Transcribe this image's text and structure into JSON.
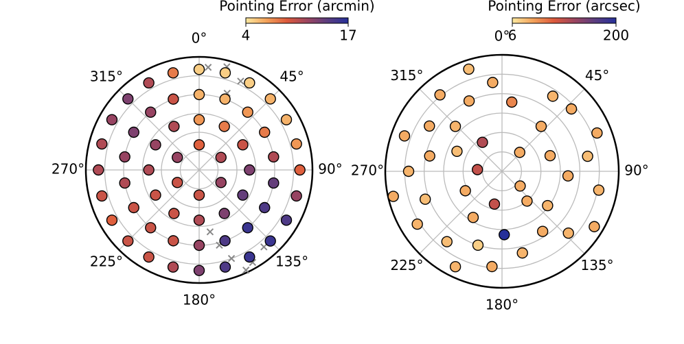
{
  "chart_data": [
    {
      "type": "polar-scatter",
      "colorbar": {
        "label": "Pointing Error (arcmin)",
        "lim": [
          4,
          17
        ],
        "ticks": [
          4,
          17
        ]
      },
      "cmap": [
        "#fde9a0",
        "#f3a25a",
        "#dd5a3c",
        "#9c4560",
        "#5a3d80",
        "#26309a"
      ],
      "rlim": [
        0,
        90
      ],
      "rticks": [
        15,
        30,
        45,
        60,
        75
      ],
      "thetaticks": [
        {
          "value": 0,
          "label": "0°"
        },
        {
          "value": 45,
          "label": "45°"
        },
        {
          "value": 90,
          "label": "90°"
        },
        {
          "value": 135,
          "label": "135°"
        },
        {
          "value": 180,
          "label": "180°"
        },
        {
          "value": 225,
          "label": "225°"
        },
        {
          "value": 270,
          "label": "270°"
        },
        {
          "value": 315,
          "label": "315°"
        }
      ],
      "points": {
        "theta": [
          0,
          60,
          120,
          180,
          240,
          300,
          0,
          30,
          60,
          90,
          120,
          150,
          180,
          210,
          240,
          270,
          300,
          330,
          0,
          20,
          40,
          60,
          80,
          100,
          120,
          140,
          160,
          180,
          200,
          220,
          240,
          260,
          280,
          300,
          320,
          340,
          0,
          15,
          30,
          45,
          60,
          75,
          90,
          105,
          120,
          135,
          150,
          165,
          180,
          195,
          210,
          225,
          240,
          255,
          270,
          285,
          300,
          315,
          330,
          345
        ],
        "r": [
          20,
          20,
          20,
          20,
          20,
          20,
          40,
          40,
          40,
          40,
          40,
          40,
          40,
          40,
          40,
          40,
          40,
          40,
          60,
          60,
          60,
          60,
          60,
          60,
          60,
          60,
          60,
          60,
          60,
          60,
          60,
          60,
          60,
          60,
          60,
          60,
          80,
          80,
          80,
          80,
          80,
          80,
          80,
          80,
          80,
          80,
          80,
          80,
          80,
          80,
          80,
          80,
          80,
          80,
          80,
          80,
          80,
          80,
          80,
          80
        ],
        "values": [
          9,
          11,
          12,
          10,
          10,
          12,
          7,
          8,
          10,
          13,
          14,
          13,
          11,
          10,
          10,
          11,
          12,
          11,
          6,
          6,
          7,
          8,
          11,
          14,
          15,
          16,
          15,
          12,
          10,
          10,
          10,
          11,
          12,
          13,
          12,
          10,
          5,
          5,
          5,
          6,
          6,
          7,
          9,
          12,
          15,
          16,
          16,
          15,
          13,
          11,
          10,
          10,
          9,
          10,
          11,
          11,
          12,
          13,
          11,
          8
        ]
      },
      "excluded": {
        "theta": [
          5,
          15,
          25,
          20,
          140,
          150,
          160,
          165,
          170,
          155
        ],
        "r": [
          82,
          85,
          78,
          65,
          80,
          85,
          75,
          62,
          50,
          88
        ]
      }
    },
    {
      "type": "polar-scatter",
      "colorbar": {
        "label": "Pointing Error (arcsec)",
        "lim": [
          6,
          200
        ],
        "ticks": [
          6,
          200
        ]
      },
      "cmap": [
        "#fde9a0",
        "#f3a25a",
        "#dd5a3c",
        "#9c4560",
        "#5a3d80",
        "#26309a"
      ],
      "rlim": [
        0,
        90
      ],
      "rticks": [
        15,
        30,
        45,
        60,
        75
      ],
      "thetaticks": [
        {
          "value": 0,
          "label": "0°"
        },
        {
          "value": 45,
          "label": "45°"
        },
        {
          "value": 90,
          "label": "90°"
        },
        {
          "value": 135,
          "label": "135°"
        },
        {
          "value": 180,
          "label": "180°"
        },
        {
          "value": 225,
          "label": "225°"
        },
        {
          "value": 270,
          "label": "270°"
        },
        {
          "value": 315,
          "label": "315°"
        }
      ],
      "points": {
        "theta": [
          342,
          354,
          8,
          321,
          335,
          34,
          48,
          68,
          41,
          290,
          302,
          314,
          294,
          326,
          43,
          72,
          80,
          270,
          282,
          274,
          129,
          94,
          101,
          257,
          250,
          242,
          193,
          140,
          127,
          121,
          238,
          212,
          146,
          133,
          218,
          198,
          178,
          166,
          206,
          186
        ],
        "r": [
          83,
          69,
          54,
          76,
          60,
          70,
          72,
          79,
          46,
          80,
          66,
          50,
          38,
          27,
          20,
          39,
          67,
          72,
          57,
          19,
          18,
          51,
          76,
          86,
          63,
          32,
          26,
          30,
          44,
          83,
          77,
          42,
          56,
          70,
          69,
          60,
          49,
          65,
          82,
          74
        ],
        "values": [
          30,
          40,
          60,
          40,
          40,
          35,
          40,
          40,
          40,
          40,
          40,
          35,
          30,
          110,
          40,
          40,
          30,
          35,
          40,
          100,
          40,
          40,
          35,
          40,
          30,
          40,
          100,
          40,
          35,
          40,
          35,
          40,
          40,
          35,
          30,
          20,
          200,
          35,
          35,
          40
        ]
      }
    }
  ]
}
